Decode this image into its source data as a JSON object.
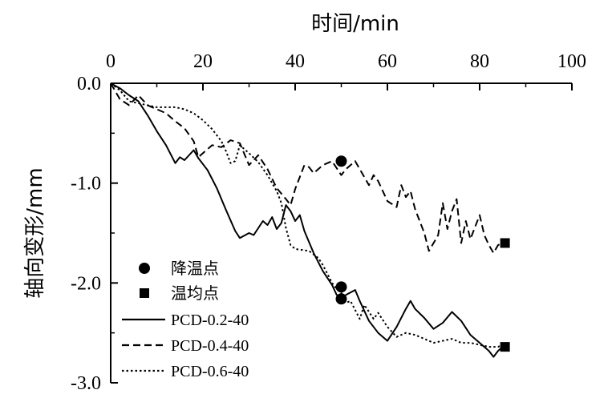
{
  "chart_data": {
    "type": "line",
    "xlabel": "时间/min",
    "ylabel": "轴向变形/mm",
    "xlim": [
      0,
      100
    ],
    "ylim": [
      -3.0,
      0.0
    ],
    "x_ticks": [
      0,
      20,
      40,
      60,
      80,
      100
    ],
    "x_tick_labels": [
      "0",
      "20",
      "40",
      "60",
      "80",
      "100"
    ],
    "y_ticks": [
      0.0,
      -1.0,
      -2.0,
      -3.0
    ],
    "y_tick_labels": [
      "0.0",
      "-1.0",
      "-2.0",
      "-3.0"
    ],
    "x_axis_position": "top",
    "grid": false,
    "legend_position": "bottom-left",
    "series": [
      {
        "name": "PCD-0.2-40",
        "style": "solid",
        "points": [
          [
            0,
            0
          ],
          [
            2,
            -0.05
          ],
          [
            4,
            -0.12
          ],
          [
            6,
            -0.18
          ],
          [
            8,
            -0.32
          ],
          [
            10,
            -0.48
          ],
          [
            12,
            -0.62
          ],
          [
            14,
            -0.8
          ],
          [
            15,
            -0.74
          ],
          [
            16,
            -0.77
          ],
          [
            18,
            -0.67
          ],
          [
            19,
            -0.75
          ],
          [
            21,
            -0.87
          ],
          [
            23,
            -1.05
          ],
          [
            25,
            -1.27
          ],
          [
            27,
            -1.48
          ],
          [
            28,
            -1.55
          ],
          [
            30,
            -1.5
          ],
          [
            31,
            -1.52
          ],
          [
            33,
            -1.38
          ],
          [
            34,
            -1.42
          ],
          [
            35,
            -1.34
          ],
          [
            36,
            -1.46
          ],
          [
            37,
            -1.4
          ],
          [
            38,
            -1.22
          ],
          [
            39,
            -1.28
          ],
          [
            40,
            -1.38
          ],
          [
            41,
            -1.32
          ],
          [
            42,
            -1.48
          ],
          [
            44,
            -1.7
          ],
          [
            46,
            -1.88
          ],
          [
            48,
            -2.02
          ],
          [
            49,
            -2.12
          ],
          [
            50,
            -2.16
          ],
          [
            51,
            -2.12
          ],
          [
            53,
            -2.07
          ],
          [
            54,
            -2.18
          ],
          [
            56,
            -2.38
          ],
          [
            58,
            -2.5
          ],
          [
            60,
            -2.58
          ],
          [
            62,
            -2.44
          ],
          [
            64,
            -2.26
          ],
          [
            65,
            -2.18
          ],
          [
            66,
            -2.26
          ],
          [
            68,
            -2.35
          ],
          [
            70,
            -2.46
          ],
          [
            72,
            -2.4
          ],
          [
            74,
            -2.29
          ],
          [
            76,
            -2.38
          ],
          [
            78,
            -2.52
          ],
          [
            80,
            -2.6
          ],
          [
            82,
            -2.68
          ],
          [
            83,
            -2.74
          ],
          [
            84,
            -2.68
          ],
          [
            85,
            -2.64
          ]
        ]
      },
      {
        "name": "PCD-0.4-40",
        "style": "dashed",
        "points": [
          [
            0,
            0
          ],
          [
            2,
            -0.16
          ],
          [
            4,
            -0.22
          ],
          [
            6,
            -0.12
          ],
          [
            8,
            -0.22
          ],
          [
            10,
            -0.26
          ],
          [
            12,
            -0.3
          ],
          [
            14,
            -0.38
          ],
          [
            16,
            -0.45
          ],
          [
            18,
            -0.58
          ],
          [
            19,
            -0.74
          ],
          [
            20,
            -0.7
          ],
          [
            22,
            -0.62
          ],
          [
            24,
            -0.64
          ],
          [
            26,
            -0.57
          ],
          [
            28,
            -0.6
          ],
          [
            30,
            -0.82
          ],
          [
            32,
            -0.72
          ],
          [
            34,
            -0.86
          ],
          [
            36,
            -1.05
          ],
          [
            38,
            -1.16
          ],
          [
            39,
            -1.22
          ],
          [
            40,
            -1.06
          ],
          [
            42,
            -0.82
          ],
          [
            43,
            -0.84
          ],
          [
            44,
            -0.9
          ],
          [
            46,
            -0.82
          ],
          [
            48,
            -0.78
          ],
          [
            50,
            -0.92
          ],
          [
            51,
            -0.86
          ],
          [
            53,
            -0.78
          ],
          [
            54,
            -0.86
          ],
          [
            56,
            -1.02
          ],
          [
            57,
            -0.92
          ],
          [
            58,
            -0.98
          ],
          [
            60,
            -1.18
          ],
          [
            62,
            -1.24
          ],
          [
            63,
            -1.02
          ],
          [
            64,
            -1.14
          ],
          [
            65,
            -1.08
          ],
          [
            66,
            -1.26
          ],
          [
            68,
            -1.5
          ],
          [
            69,
            -1.68
          ],
          [
            71,
            -1.52
          ],
          [
            72,
            -1.2
          ],
          [
            73,
            -1.46
          ],
          [
            74,
            -1.28
          ],
          [
            75,
            -1.16
          ],
          [
            76,
            -1.6
          ],
          [
            77,
            -1.38
          ],
          [
            78,
            -1.56
          ],
          [
            80,
            -1.32
          ],
          [
            81,
            -1.52
          ],
          [
            82,
            -1.62
          ],
          [
            83,
            -1.7
          ],
          [
            84,
            -1.62
          ],
          [
            85,
            -1.6
          ]
        ]
      },
      {
        "name": "PCD-0.6-40",
        "style": "dotted",
        "points": [
          [
            0,
            0
          ],
          [
            2,
            -0.07
          ],
          [
            4,
            -0.18
          ],
          [
            6,
            -0.2
          ],
          [
            10,
            -0.24
          ],
          [
            14,
            -0.24
          ],
          [
            16,
            -0.26
          ],
          [
            18,
            -0.3
          ],
          [
            20,
            -0.37
          ],
          [
            22,
            -0.46
          ],
          [
            24,
            -0.58
          ],
          [
            25,
            -0.68
          ],
          [
            26,
            -0.8
          ],
          [
            27,
            -0.78
          ],
          [
            28,
            -0.62
          ],
          [
            30,
            -0.7
          ],
          [
            32,
            -0.79
          ],
          [
            34,
            -0.92
          ],
          [
            36,
            -1.08
          ],
          [
            37,
            -1.2
          ],
          [
            38,
            -1.45
          ],
          [
            39,
            -1.62
          ],
          [
            40,
            -1.66
          ],
          [
            43,
            -1.68
          ],
          [
            45,
            -1.75
          ],
          [
            46,
            -1.82
          ],
          [
            48,
            -2.0
          ],
          [
            49,
            -2.06
          ],
          [
            50,
            -2.1
          ],
          [
            51,
            -2.2
          ],
          [
            52,
            -2.18
          ],
          [
            54,
            -2.36
          ],
          [
            55,
            -2.22
          ],
          [
            57,
            -2.36
          ],
          [
            58,
            -2.3
          ],
          [
            60,
            -2.44
          ],
          [
            62,
            -2.54
          ],
          [
            64,
            -2.5
          ],
          [
            66,
            -2.52
          ],
          [
            68,
            -2.56
          ],
          [
            70,
            -2.6
          ],
          [
            74,
            -2.56
          ],
          [
            76,
            -2.6
          ],
          [
            78,
            -2.6
          ],
          [
            80,
            -2.62
          ],
          [
            82,
            -2.64
          ],
          [
            84,
            -2.64
          ],
          [
            85,
            -2.62
          ]
        ]
      }
    ],
    "markers": [
      {
        "name": "降温点",
        "shape": "circle",
        "points": [
          [
            50,
            -0.78
          ],
          [
            50,
            -2.04
          ],
          [
            50,
            -2.16
          ]
        ]
      },
      {
        "name": "温均点",
        "shape": "square",
        "points": [
          [
            85.5,
            -1.6
          ],
          [
            85.5,
            -2.64
          ]
        ]
      }
    ]
  }
}
